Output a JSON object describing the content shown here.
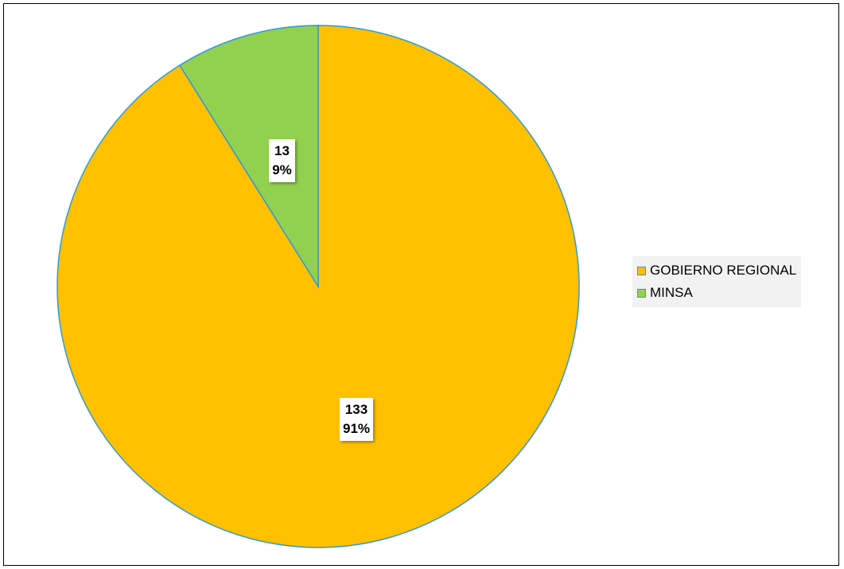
{
  "chart_data": {
    "type": "pie",
    "slices": [
      {
        "label": "GOBIERNO REGIONAL",
        "value": 133,
        "percent": "91%",
        "color": "#FFC000"
      },
      {
        "label": "MINSA",
        "value": 13,
        "percent": "9%",
        "color": "#92D050"
      }
    ],
    "slice_border_color": "#2E9BD6",
    "legend_position": "right",
    "start_angle": "top, clockwise; MINSA slice ends at top"
  }
}
